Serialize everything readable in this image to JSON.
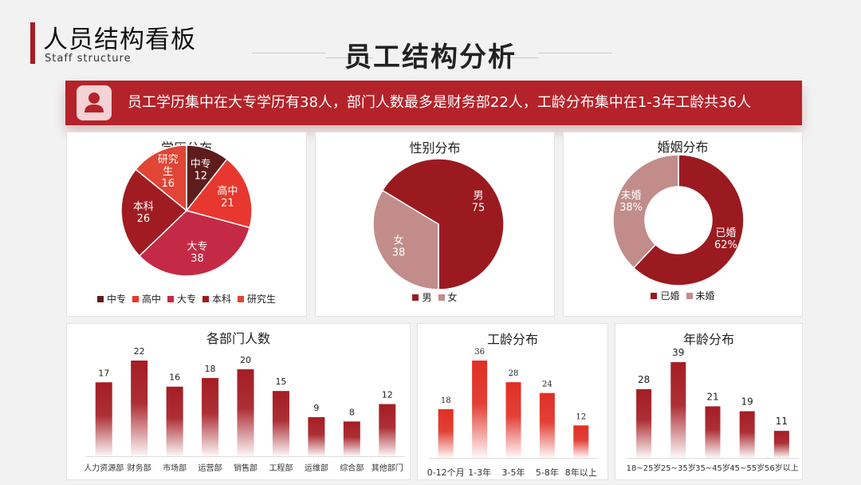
{
  "header": {
    "title": "人员结构看板",
    "subtitle": "Staff structure",
    "main_title": "员工结构分析"
  },
  "banner": {
    "icon": "user-icon",
    "text": "员工学历集中在大专学历有38人，部门人数最多是财务部22人，工龄分布集中在1-3年工龄共36人"
  },
  "chart_data": [
    {
      "type": "pie",
      "title": "学历分布",
      "categories": [
        "中专",
        "高中",
        "大专",
        "本科",
        "研究生"
      ],
      "values": [
        12,
        21,
        38,
        26,
        16
      ],
      "colors": [
        "#5e1c1c",
        "#e8372e",
        "#c42a46",
        "#a01c22",
        "#e04535"
      ],
      "label_lines": [
        [
          "中专",
          "12"
        ],
        [
          "高中",
          "21"
        ],
        [
          "大专",
          "38"
        ],
        [
          "本科",
          "26"
        ],
        [
          "研究",
          "生",
          "16"
        ]
      ],
      "legend": "bottom"
    },
    {
      "type": "pie",
      "title": "性别分布",
      "categories": [
        "男",
        "女"
      ],
      "values": [
        75,
        38
      ],
      "colors": [
        "#9b1a20",
        "#c18c8a"
      ],
      "legend": "bottom"
    },
    {
      "type": "pie",
      "subtype": "donut",
      "title": "婚姻分布",
      "categories": [
        "已婚",
        "未婚"
      ],
      "values": [
        62,
        38
      ],
      "value_labels": [
        "62%",
        "38%"
      ],
      "colors": [
        "#9b1a20",
        "#c18c8a"
      ],
      "legend": "bottom"
    },
    {
      "type": "bar",
      "title": "各部门人数",
      "categories": [
        "人力资源部",
        "财务部",
        "市场部",
        "运营部",
        "销售部",
        "工程部",
        "运维部",
        "综合部",
        "其他部门"
      ],
      "values": [
        17,
        22,
        16,
        18,
        20,
        15,
        9,
        8,
        12
      ],
      "color": "#a51d24",
      "ylim": [
        0,
        22
      ]
    },
    {
      "type": "bar",
      "title": "工龄分布",
      "categories": [
        "0-12个月",
        "1-3年",
        "3-5年",
        "5-8年",
        "8年以上"
      ],
      "values": [
        18,
        36,
        28,
        24,
        12
      ],
      "color": "#e03025",
      "ylim": [
        0,
        36
      ]
    },
    {
      "type": "bar",
      "title": "年龄分布",
      "categories": [
        "18~25岁",
        "25~35岁",
        "35~45岁",
        "45~55岁",
        "56岁以上"
      ],
      "values": [
        28,
        39,
        21,
        19,
        11
      ],
      "color": "#a51d24",
      "ylim": [
        0,
        39
      ]
    }
  ]
}
